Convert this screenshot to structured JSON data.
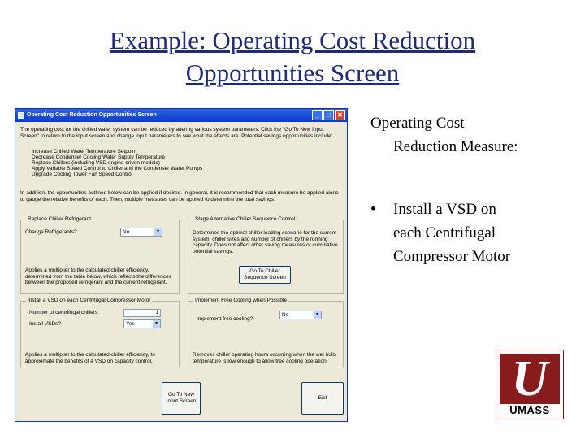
{
  "slide": {
    "title_line1": "Example: Operating Cost Reduction",
    "title_line2": "Opportunities Screen",
    "right_heading_line1": "Operating Cost",
    "right_heading_line2": "Reduction Measure:",
    "bullet_line1": "Install a VSD on",
    "bullet_line2": "each Centrifugal",
    "bullet_line3": "Compressor Motor",
    "logo_text": "UMASS",
    "logo_letter": "U"
  },
  "window": {
    "title": "Operating Cost Reduction Opportunities Screen",
    "controls": {
      "minimize": "_",
      "maximize": "□",
      "close": "✕"
    },
    "intro": "The operating cost for the chilled water system can be reduced by altering various system parameters. Click the \"Go To New Input Screen\" to return to the input screen and change input parameters to see what the effects are. Potential savings opportunities include:",
    "bullets": [
      "Increase Chilled Water Temperature Setpoint",
      "Decrease Condenser Cooling Water Supply Temperature",
      "Replace Chillers (including VSD engine driven models)",
      "Apply Variable Speed Control to Chiller and the Condenser Water Pumps",
      "Upgrade Cooling Tower Fan Speed Control"
    ],
    "intro2": "In addition, the opportunities outlined below can be applied if desired. In general, it is recommended that each measure be applied alone to gauge the relative benefits of each. Then, multiple measures can be applied to determine the total savings.",
    "refrigerant": {
      "label": "Replace Chiller Refrigerant",
      "field_label": "Change Refrigerants?",
      "value": "No",
      "text": "Applies a multiplier to the calculated chiller efficiency, determined from the table below, which reflects the differences between the proposed refrigerant and the current refrigerant."
    },
    "staging": {
      "label": "Stage Alternative Chiller Sequence Control",
      "text": "Determines the optimal chiller loading scenario for the current system, chiller sizes and number of chillers by the running capacity. Does not affect other saving measures or cumulative potential savings.",
      "button": "Go To Chiller Sequence Screen"
    },
    "vsd": {
      "label": "Install a VSD on each Centrifugal Compressor Motor",
      "count_label": "Number of centrifugal chillers:",
      "count_value": "1",
      "install_label": "Install VSDs?",
      "install_value": "Yes",
      "text": "Applies a multiplier to the calculated chiller efficiency, to approximate the benefits of a VSD on capacity control."
    },
    "freecooling": {
      "label": "Implement Free Cooling when Possible",
      "field_label": "Implement free cooling?",
      "value": "No",
      "text": "Removes chiller operating hours occurring when the wet bulb temperature is low enough to allow free cooling operation."
    },
    "buttons": {
      "new_input": "Go To New Input Screen",
      "exit": "Exit"
    }
  }
}
